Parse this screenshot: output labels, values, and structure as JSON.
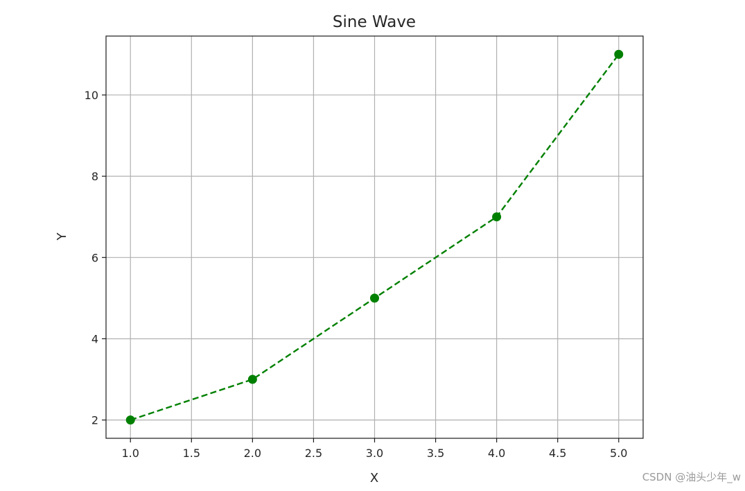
{
  "chart_data": {
    "type": "line",
    "title": "Sine Wave",
    "xlabel": "X",
    "ylabel": "Y",
    "x": [
      1,
      2,
      3,
      4,
      5
    ],
    "series": [
      {
        "values": [
          2,
          3,
          5,
          7,
          11
        ],
        "color": "#008000",
        "line_style": "dashed",
        "marker": "circle"
      }
    ],
    "xlim": [
      0.8,
      5.2
    ],
    "ylim": [
      1.55,
      11.45
    ],
    "x_ticks": [
      1.0,
      1.5,
      2.0,
      2.5,
      3.0,
      3.5,
      4.0,
      4.5,
      5.0
    ],
    "x_tick_labels": [
      "1.0",
      "1.5",
      "2.0",
      "2.5",
      "3.0",
      "3.5",
      "4.0",
      "4.5",
      "5.0"
    ],
    "y_ticks": [
      2,
      4,
      6,
      8,
      10
    ],
    "y_tick_labels": [
      "2",
      "4",
      "6",
      "8",
      "10"
    ],
    "grid": true,
    "grid_color": "#b0b0b0",
    "text_color": "#262626"
  },
  "watermark": "CSDN @油头少年_w"
}
